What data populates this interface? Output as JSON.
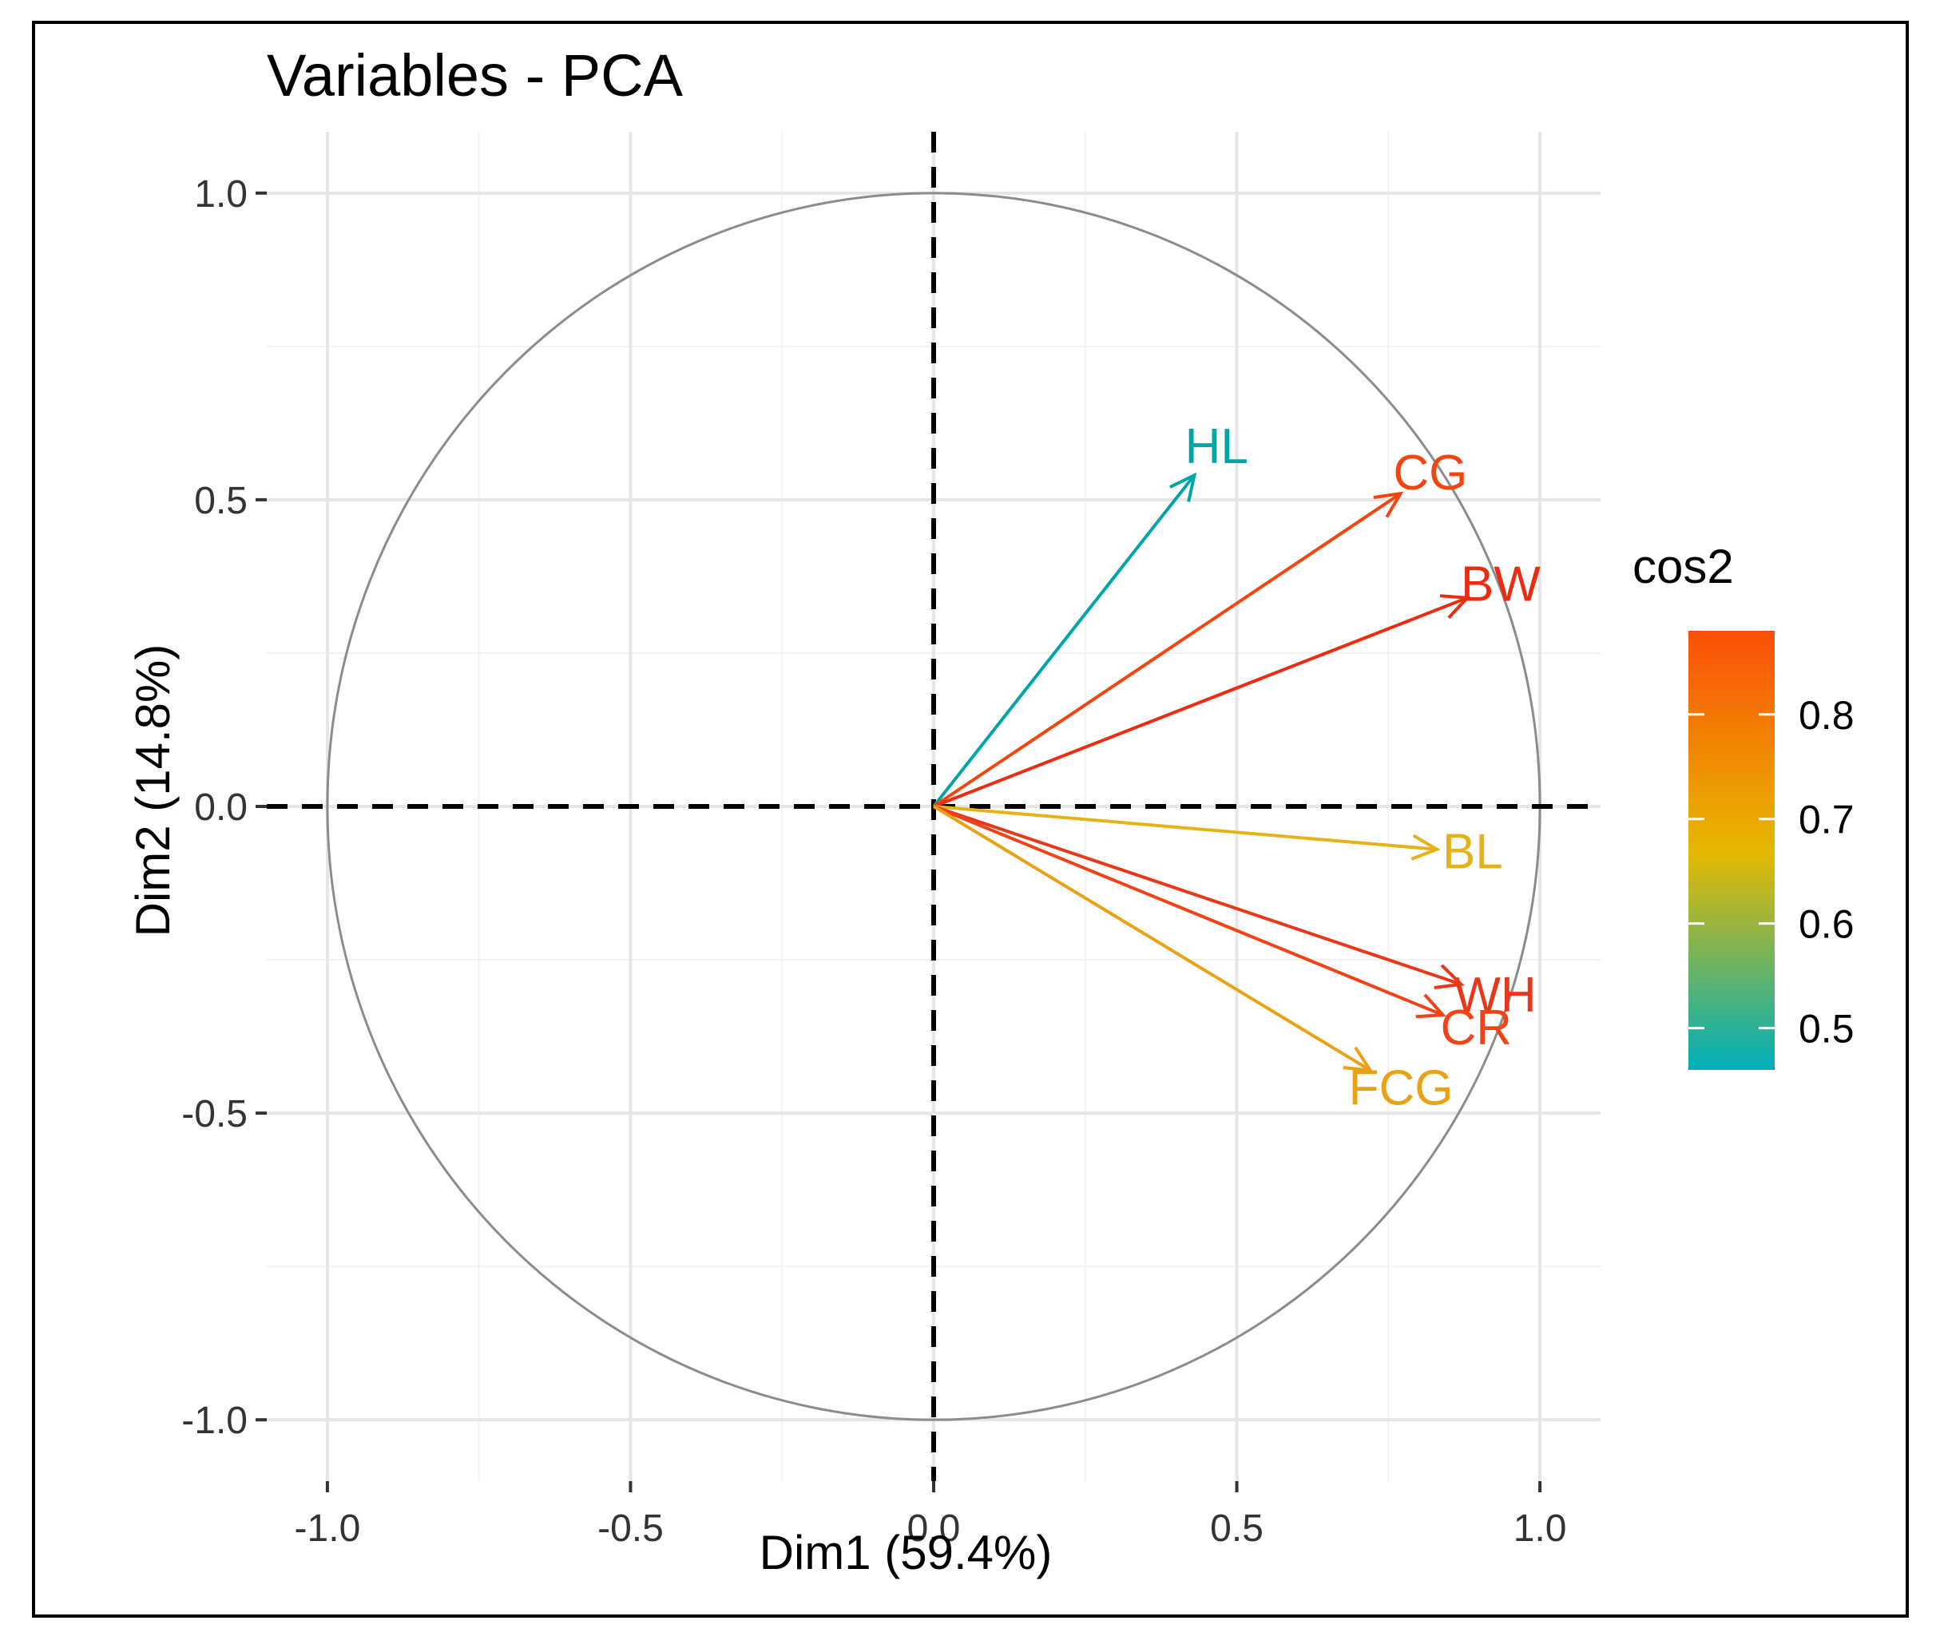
{
  "chart_data": {
    "type": "pca-variable-correlation-circle",
    "title": "Variables - PCA",
    "xlabel": "Dim1 (59.4%)",
    "ylabel": "Dim2 (14.8%)",
    "xlim": [
      -1.1,
      1.1
    ],
    "ylim": [
      -1.1,
      1.1
    ],
    "x_ticks": [
      -1.0,
      -0.5,
      0.0,
      0.5,
      1.0
    ],
    "y_ticks": [
      -1.0,
      -0.5,
      0.0,
      0.5,
      1.0
    ],
    "x_tick_labels": [
      "-1.0",
      "-0.5",
      "0.0",
      "0.5",
      "1.0"
    ],
    "y_tick_labels": [
      "-1.0",
      "-0.5",
      "0.0",
      "0.5",
      "1.0"
    ],
    "grid": true,
    "unit_circle": true,
    "variables": [
      {
        "name": "HL",
        "x": 0.43,
        "y": 0.54,
        "cos2": 0.48,
        "color": "#00A5A8"
      },
      {
        "name": "CG",
        "x": 0.77,
        "y": 0.51,
        "cos2": 0.86,
        "color": "#F2450F"
      },
      {
        "name": "BW",
        "x": 0.88,
        "y": 0.34,
        "cos2": 0.88,
        "color": "#EE2A10"
      },
      {
        "name": "BL",
        "x": 0.83,
        "y": -0.07,
        "cos2": 0.69,
        "color": "#E6B21A"
      },
      {
        "name": "WH",
        "x": 0.87,
        "y": -0.29,
        "cos2": 0.85,
        "color": "#E8381A"
      },
      {
        "name": "CR",
        "x": 0.84,
        "y": -0.34,
        "cos2": 0.82,
        "color": "#F04418"
      },
      {
        "name": "FCG",
        "x": 0.72,
        "y": -0.43,
        "cos2": 0.71,
        "color": "#EBA114"
      }
    ],
    "legend": {
      "title": "cos2",
      "position": "right",
      "range": [
        0.46,
        0.88
      ],
      "ticks": [
        0.5,
        0.6,
        0.7,
        0.8
      ],
      "tick_labels": [
        "0.5",
        "0.6",
        "0.7",
        "0.8"
      ],
      "gradient_colors": [
        "#00AFBB",
        "#E7B800",
        "#FC4E07"
      ]
    }
  }
}
